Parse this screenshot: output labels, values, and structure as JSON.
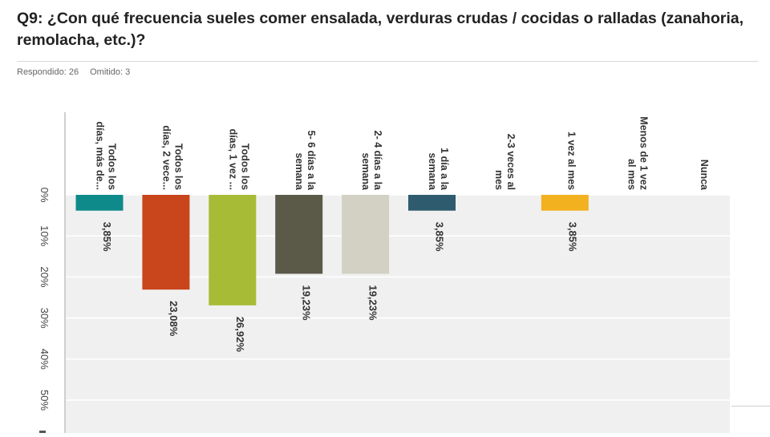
{
  "header": {
    "title": "Q9: ¿Con qué frecuencia sueles comer ensalada, verduras crudas / cocidas o ralladas (zanahoria, remolacha, etc.)?",
    "answered": "Respondido: 26",
    "skipped": "Omitido: 3"
  },
  "chart_data": {
    "type": "bar",
    "orientation": "vertical, rotated view (bars hang downward from 0%)",
    "categories": [
      [
        "Todos los",
        "días, más de..."
      ],
      [
        "Todos los",
        "días, 2 vece..."
      ],
      [
        "Todos los",
        "días, 1 vez ..."
      ],
      [
        "5- 6 días a la",
        "semana"
      ],
      [
        "2- 4 días a la",
        "semana"
      ],
      [
        "1 día a la",
        "semana"
      ],
      [
        "2-3 veces al",
        "mes"
      ],
      [
        "1 vez al mes"
      ],
      [
        "Menos de 1 vez",
        "al mes"
      ],
      [
        "Nunca"
      ]
    ],
    "values": [
      3.85,
      23.08,
      26.92,
      19.23,
      19.23,
      3.85,
      0,
      3.85,
      0,
      0
    ],
    "value_labels": [
      "3,85%",
      "23,08%",
      "26,92%",
      "19,23%",
      "19,23%",
      "3,85%",
      "",
      "3,85%",
      "",
      ""
    ],
    "colors": [
      "#0f8a8a",
      "#c9451b",
      "#a8bb36",
      "#5b5a48",
      "#d3d1c3",
      "#2e5c6e",
      "#cccccc",
      "#f2b11f",
      "#cccccc",
      "#cccccc"
    ],
    "axis_ticks": [
      "0%",
      "10%",
      "20%",
      "30%",
      "40%",
      "50%"
    ],
    "ylim": [
      0,
      60
    ],
    "grid": true,
    "plot_background": "#f0f0f0"
  }
}
